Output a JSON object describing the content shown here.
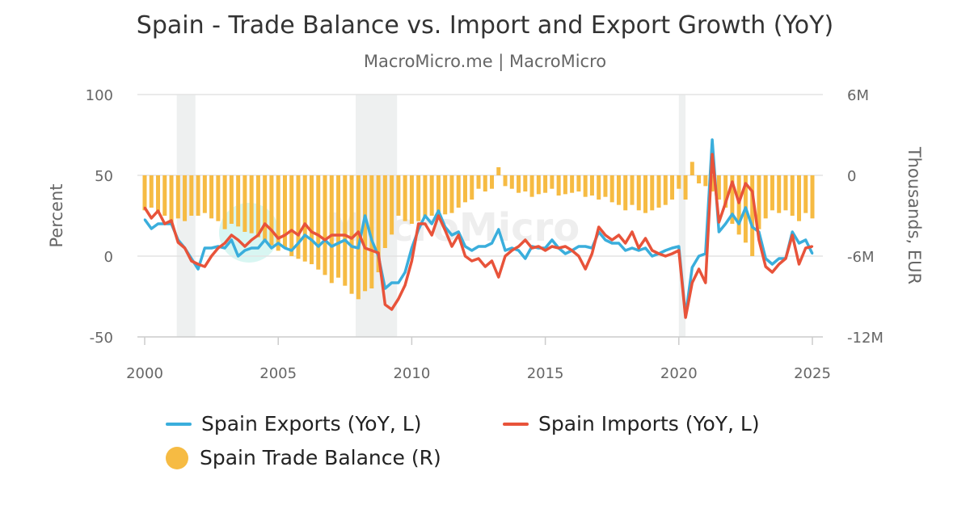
{
  "chart_data": {
    "type": "bar+line",
    "title": "Spain - Trade Balance vs. Import and Export Growth (YoY)",
    "subtitle": "MacroMicro.me | MacroMicro",
    "watermark": "MacroMicro",
    "ylabel_left": "Percent",
    "ylabel_right": "Thousands, EUR",
    "ylim_left": [
      -50,
      100
    ],
    "ylim_right": [
      -12000000,
      6000000
    ],
    "left_ticks": [
      "100",
      "50",
      "0",
      "-50"
    ],
    "right_ticks": [
      "6M",
      "0",
      "-6M",
      "-12M"
    ],
    "x_ticks": [
      "2000",
      "2005",
      "2010",
      "2015",
      "2020",
      "2025"
    ],
    "xlim": [
      2000,
      2025.3
    ],
    "grid": true,
    "legend_position": "bottom",
    "recession_shading": [
      [
        2001.2,
        2001.9
      ],
      [
        2007.9,
        2009.45
      ],
      [
        2020.0,
        2020.25
      ]
    ],
    "x_start": 2000,
    "x_step": 0.25,
    "series": [
      {
        "name": "Spain Exports (YoY, L)",
        "type": "line",
        "axis": "left",
        "color": "#3aaedc",
        "values": [
          22.7,
          17,
          20,
          20,
          20,
          10,
          5,
          -1.5,
          -8,
          5,
          5,
          6,
          5,
          10,
          0,
          3.5,
          5,
          5,
          10,
          5,
          8,
          5,
          3.5,
          8,
          13,
          10,
          6,
          10,
          6,
          8,
          10,
          6,
          5,
          25,
          10,
          0,
          -20,
          -16.5,
          -16.5,
          -10,
          5,
          16.5,
          25,
          20,
          28,
          18,
          13,
          15,
          6,
          3.5,
          6,
          6,
          8,
          16.5,
          3.5,
          5,
          3.5,
          -1.5,
          6,
          5,
          5,
          10,
          5,
          1.5,
          3.5,
          6,
          6,
          5,
          15,
          10,
          8,
          8,
          3.5,
          5,
          3.5,
          5,
          0,
          1.5,
          3.5,
          5,
          6,
          -37,
          -7,
          0,
          1.5,
          72,
          15,
          20,
          26,
          20,
          30,
          18,
          15,
          -1.5,
          -5,
          -1.5,
          -1.5,
          15,
          8,
          10,
          1.5
        ]
      },
      {
        "name": "Spain Imports (YoY, L)",
        "type": "line",
        "axis": "left",
        "color": "#e8533a",
        "values": [
          30,
          23.5,
          28,
          20,
          22,
          8.5,
          5,
          -3,
          -5,
          -6.5,
          0,
          5,
          8,
          13,
          10,
          6,
          10,
          13,
          20,
          16,
          11,
          13,
          16,
          13,
          20,
          15,
          13,
          10,
          13,
          13,
          13,
          11,
          15,
          5,
          3.5,
          2,
          -30,
          -33,
          -26.5,
          -18,
          -3,
          20,
          20,
          13,
          25,
          16,
          6,
          13,
          0,
          -3,
          -1.5,
          -6.5,
          -3,
          -13,
          0,
          3.5,
          6,
          10,
          5,
          6,
          3.5,
          6,
          5,
          6,
          3.5,
          0,
          -8,
          1.5,
          18,
          13,
          10,
          13,
          8,
          15,
          5,
          11,
          3.5,
          1.5,
          0,
          1.5,
          3.5,
          -38,
          -16.5,
          -8,
          -16.5,
          63,
          21,
          33,
          46,
          33,
          45,
          40,
          10,
          -6.5,
          -10,
          -5,
          -1.5,
          13,
          -5,
          5,
          6
        ]
      },
      {
        "name": "Spain Trade Balance (R)",
        "type": "bar",
        "axis": "right",
        "unit": "million EUR",
        "color": "#f6bb43",
        "values": [
          -2.6,
          -2.4,
          -2.8,
          -3.0,
          -3.6,
          -3.2,
          -3.4,
          -3.0,
          -3.0,
          -2.8,
          -3.2,
          -3.4,
          -4.0,
          -3.6,
          -3.8,
          -4.2,
          -4.3,
          -4.6,
          -4.8,
          -5.2,
          -5.6,
          -5.4,
          -6.0,
          -6.2,
          -6.4,
          -6.6,
          -7.0,
          -7.4,
          -8.0,
          -7.6,
          -8.2,
          -8.8,
          -9.2,
          -8.6,
          -8.4,
          -7.2,
          -5.4,
          -4.4,
          -3.0,
          -3.4,
          -3.6,
          -3.4,
          -3.2,
          -3.0,
          -3.0,
          -2.9,
          -2.8,
          -2.4,
          -2.0,
          -1.8,
          -1.0,
          -1.2,
          -1.0,
          0.6,
          -0.8,
          -1.0,
          -1.3,
          -1.2,
          -1.6,
          -1.4,
          -1.3,
          -1.0,
          -1.5,
          -1.4,
          -1.3,
          -1.2,
          -1.6,
          -1.5,
          -1.8,
          -1.6,
          -2.0,
          -2.2,
          -2.6,
          -2.2,
          -2.6,
          -2.8,
          -2.6,
          -2.4,
          -2.2,
          -1.8,
          -1.0,
          -1.8,
          1.0,
          -0.6,
          -0.8,
          -1.2,
          -1.8,
          -2.4,
          -3.6,
          -4.4,
          -5.0,
          -6.0,
          -4.0,
          -3.2,
          -2.6,
          -2.8,
          -2.6,
          -3.0,
          -3.4,
          -2.8,
          -3.2
        ]
      }
    ]
  }
}
